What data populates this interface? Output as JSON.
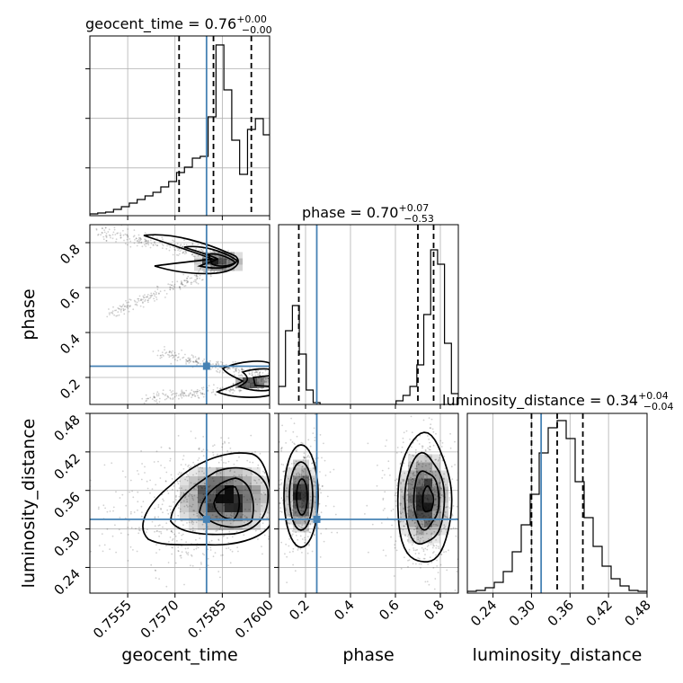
{
  "chart_data": {
    "type": "corner",
    "parameters": [
      "geocent_time",
      "phase",
      "luminosity_distance"
    ],
    "truths": {
      "geocent_time": 0.758,
      "phase": 0.25,
      "luminosity_distance": 0.315
    },
    "ranges": {
      "geocent_time": [
        0.7543,
        0.76
      ],
      "phase": [
        0.08,
        0.88
      ],
      "luminosity_distance": [
        0.2,
        0.48
      ]
    },
    "ticks": {
      "geocent_time": {
        "values": [
          0.7555,
          0.757,
          0.7585,
          0.76
        ],
        "labels": [
          "0.7555",
          "0.7570",
          "0.7585",
          "0.7600"
        ]
      },
      "phase": {
        "values": [
          0.2,
          0.4,
          0.6,
          0.8
        ],
        "labels": [
          "0.2",
          "0.4",
          "0.6",
          "0.8"
        ]
      },
      "luminosity_distance": {
        "values": [
          0.24,
          0.3,
          0.36,
          0.42,
          0.48
        ],
        "labels": [
          "0.24",
          "0.30",
          "0.36",
          "0.42",
          "0.48"
        ]
      }
    },
    "axis_labels": {
      "geocent_time": "geocent_time",
      "phase": "phase",
      "luminosity_distance": "luminosity_distance"
    },
    "titles": {
      "geocent_time": {
        "name": "geocent_time",
        "median": "0.76",
        "plus": "+0.00",
        "minus": "−0.00"
      },
      "phase": {
        "name": "phase",
        "median": "0.70",
        "plus": "+0.07",
        "minus": "−0.53"
      },
      "luminosity_distance": {
        "name": "luminosity_distance",
        "median": "0.34",
        "plus": "+0.04",
        "minus": "−0.04"
      }
    },
    "quantiles": {
      "geocent_time": [
        0.75713,
        0.75822,
        0.75942
      ],
      "phase": [
        0.17,
        0.7,
        0.77
      ],
      "luminosity_distance": [
        0.3,
        0.34,
        0.38
      ]
    },
    "histograms": {
      "geocent_time": {
        "range": [
          0.7543,
          0.7603
        ],
        "counts": [
          0.01,
          0.015,
          0.02,
          0.035,
          0.05,
          0.07,
          0.09,
          0.11,
          0.13,
          0.16,
          0.19,
          0.24,
          0.27,
          0.32,
          0.33,
          0.55,
          0.95,
          0.7,
          0.42,
          0.23,
          0.48,
          0.54,
          0.45,
          0.37
        ]
      },
      "phase": {
        "range": [
          0.08,
          0.88
        ],
        "counts": [
          0.1,
          0.41,
          0.55,
          0.28,
          0.08,
          0.01,
          0.0,
          0.0,
          0.0,
          0.0,
          0.0,
          0.0,
          0.0,
          0.0,
          0.0,
          0.0,
          0.0,
          0.02,
          0.05,
          0.1,
          0.22,
          0.5,
          0.86,
          0.78,
          0.34,
          0.06
        ]
      },
      "luminosity_distance": {
        "range": [
          0.2,
          0.48
        ],
        "counts": [
          0.01,
          0.015,
          0.03,
          0.06,
          0.12,
          0.23,
          0.38,
          0.55,
          0.78,
          0.92,
          0.96,
          0.86,
          0.62,
          0.42,
          0.26,
          0.15,
          0.08,
          0.04,
          0.015,
          0.01
        ]
      }
    }
  }
}
